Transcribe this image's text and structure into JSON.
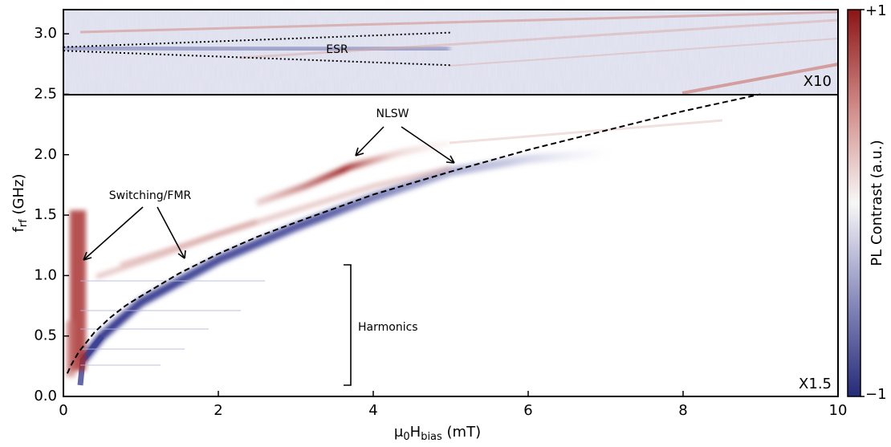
{
  "chart_data": {
    "type": "heatmap",
    "xlabel": [
      "μ",
      "0",
      "H",
      "bias",
      " (mT)"
    ],
    "ylabel": [
      "f",
      "rf",
      " (GHz)"
    ],
    "colorbar_label": "PL Contrast (a.u.)",
    "clim": [
      -1,
      1
    ],
    "cticks": [
      {
        "value": 1,
        "label": "+1"
      },
      {
        "value": -1,
        "label": "−1"
      }
    ],
    "xlim": [
      0,
      10
    ],
    "xticks": [
      0,
      2,
      4,
      6,
      8,
      10
    ],
    "ylim": [
      0,
      3.2
    ],
    "yticks": [
      {
        "value": 0,
        "label": "0.0"
      },
      0.5,
      {
        "value": 1,
        "label": "1.0"
      },
      1.5,
      {
        "value": 2,
        "label": "2.0"
      },
      2.5,
      {
        "value": 3,
        "label": "3.0"
      }
    ],
    "annotations": [
      "ESR",
      "NLSW",
      "Switching/FMR",
      "Harmonics",
      "X10",
      "X1.5"
    ],
    "series": [
      {
        "color": "#000000",
        "dash": "dashed",
        "x": [
          0.05,
          0.1,
          0.2,
          0.4,
          0.6,
          0.8,
          1,
          1.5,
          2,
          2.5,
          3,
          4,
          5,
          6,
          7,
          8,
          9
        ],
        "values": [
          0.19,
          0.26,
          0.37,
          0.53,
          0.65,
          0.75,
          0.83,
          1.02,
          1.18,
          1.32,
          1.44,
          1.67,
          1.86,
          2.04,
          2.2,
          2.36,
          2.5
        ]
      },
      {
        "color": "#000000",
        "dash": "dotted",
        "x": [
          0,
          5
        ],
        "values": [
          2.89,
          3.01
        ]
      },
      {
        "color": "#000000",
        "dash": "dotted",
        "x": [
          0,
          5
        ],
        "values": [
          2.86,
          2.74
        ]
      }
    ]
  }
}
